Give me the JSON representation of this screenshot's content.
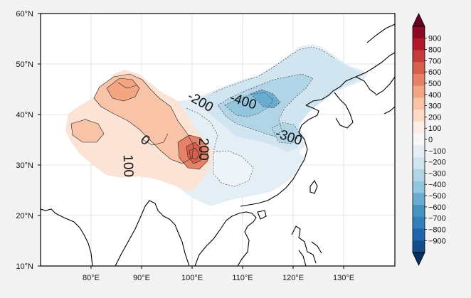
{
  "map": {
    "lat_labels": [
      "60°N",
      "50°N",
      "40°N",
      "30°N",
      "20°N",
      "10°N"
    ],
    "lon_labels": [
      "80°E",
      "90°E",
      "100°E",
      "110°E",
      "120°E",
      "130°E"
    ],
    "contour_labels": [
      "-400",
      "-200",
      "-300",
      "0",
      "200",
      "100"
    ]
  },
  "colorbar": {
    "labels": [
      "900",
      "800",
      "700",
      "600",
      "500",
      "400",
      "300",
      "200",
      "100",
      "0",
      "−100",
      "−200",
      "−300",
      "−400",
      "−500",
      "−600",
      "−700",
      "−800",
      "−900"
    ],
    "colors": [
      "#67001f",
      "#8b0a26",
      "#b2182b",
      "#c43c3c",
      "#d6604d",
      "#e58267",
      "#f4a582",
      "#f8c3a6",
      "#fddbc7",
      "#fbeee6",
      "#f7f7f7",
      "#e4eef5",
      "#d1e5f0",
      "#b1d4e7",
      "#92c5de",
      "#6aacd0",
      "#4393c3",
      "#3280b9",
      "#2166ac",
      "#134d8a",
      "#053061"
    ]
  }
}
